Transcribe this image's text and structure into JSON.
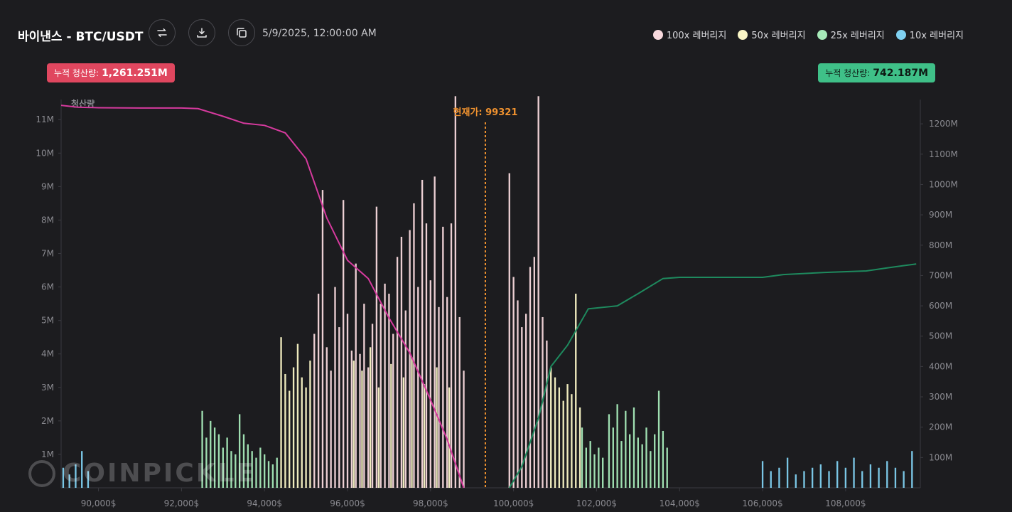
{
  "header": {
    "title": "바이낸스 - BTC/USDT",
    "datetime": "5/9/2025, 12:00:00 AM",
    "buttons": [
      {
        "name": "swap-button",
        "icon": "swap-icon"
      },
      {
        "name": "download-button",
        "icon": "download-icon"
      },
      {
        "name": "copy-button",
        "icon": "copy-icon"
      }
    ]
  },
  "legend": [
    {
      "label": "100x 레버리지",
      "color": "#f8d9dd"
    },
    {
      "label": "50x 레버리지",
      "color": "#faf6c6"
    },
    {
      "label": "25x 레버리지",
      "color": "#a7eab9"
    },
    {
      "label": "10x 레버리지",
      "color": "#7fd0f0"
    }
  ],
  "badges": {
    "left": {
      "label": "누적 청산량:",
      "value": "1,261.251M"
    },
    "right": {
      "label": "누적 청산량:",
      "value": "742.187M"
    }
  },
  "watermark": "COINPICKLE",
  "chart_data": {
    "type": "bar",
    "ylabel": "청산량",
    "current_price_label": "현재가: 99321",
    "current_price": 99321,
    "x_range": [
      89100,
      109800
    ],
    "x_ticks": [
      90000,
      92000,
      94000,
      96000,
      98000,
      100000,
      102000,
      104000,
      106000,
      108000
    ],
    "x_tick_labels": [
      "90,000$",
      "92,000$",
      "94,000$",
      "96,000$",
      "98,000$",
      "100,000$",
      "102,000$",
      "104,000$",
      "106,000$",
      "108,000$"
    ],
    "y_left_range": [
      0,
      11.6
    ],
    "y_left_ticks": [
      1,
      2,
      3,
      4,
      5,
      6,
      7,
      8,
      9,
      10,
      11
    ],
    "y_left_tick_labels": [
      "1M",
      "2M",
      "3M",
      "4M",
      "5M",
      "6M",
      "7M",
      "8M",
      "9M",
      "10M",
      "11M"
    ],
    "y_right_range": [
      0,
      1280
    ],
    "y_right_ticks": [
      100,
      200,
      300,
      400,
      500,
      600,
      700,
      800,
      900,
      1000,
      1100,
      1200
    ],
    "y_right_tick_labels": [
      "100M",
      "200M",
      "300M",
      "400M",
      "500M",
      "600M",
      "700M",
      "800M",
      "900M",
      "1000M",
      "1100M",
      "1200M"
    ],
    "bar_width_price": 40,
    "series": [
      {
        "name": "100x 레버리지",
        "color": "#f8d9dd",
        "bars": [
          [
            95200,
            4.6
          ],
          [
            95300,
            5.8
          ],
          [
            95400,
            8.9
          ],
          [
            95500,
            4.2
          ],
          [
            95600,
            3.5
          ],
          [
            95700,
            6.0
          ],
          [
            95800,
            4.8
          ],
          [
            95900,
            8.6
          ],
          [
            96000,
            5.2
          ],
          [
            96100,
            4.1
          ],
          [
            96200,
            6.7
          ],
          [
            96300,
            4.0
          ],
          [
            96400,
            5.5
          ],
          [
            96500,
            3.6
          ],
          [
            96600,
            4.9
          ],
          [
            96700,
            8.4
          ],
          [
            96800,
            5.5
          ],
          [
            96900,
            6.1
          ],
          [
            97000,
            5.8
          ],
          [
            97100,
            4.6
          ],
          [
            97200,
            6.9
          ],
          [
            97300,
            7.5
          ],
          [
            97400,
            5.3
          ],
          [
            97500,
            7.7
          ],
          [
            97600,
            8.5
          ],
          [
            97700,
            6.0
          ],
          [
            97800,
            9.2
          ],
          [
            97900,
            7.9
          ],
          [
            98000,
            6.2
          ],
          [
            98100,
            9.3
          ],
          [
            98200,
            5.4
          ],
          [
            98300,
            7.8
          ],
          [
            98400,
            5.7
          ],
          [
            98500,
            7.9
          ],
          [
            98600,
            11.7
          ],
          [
            98700,
            5.1
          ],
          [
            98800,
            3.5
          ],
          [
            99900,
            9.4
          ],
          [
            100000,
            6.3
          ],
          [
            100100,
            5.6
          ],
          [
            100200,
            4.8
          ],
          [
            100300,
            5.2
          ],
          [
            100400,
            6.6
          ],
          [
            100500,
            6.9
          ],
          [
            100600,
            11.7
          ],
          [
            100700,
            5.1
          ],
          [
            100800,
            4.4
          ]
        ]
      },
      {
        "name": "50x 레버리지",
        "color": "#faf6c6",
        "bars": [
          [
            94400,
            4.5
          ],
          [
            94500,
            3.4
          ],
          [
            94600,
            2.9
          ],
          [
            94700,
            3.6
          ],
          [
            94800,
            4.3
          ],
          [
            94900,
            3.3
          ],
          [
            95000,
            3.0
          ],
          [
            95100,
            3.8
          ],
          [
            96150,
            3.8
          ],
          [
            96350,
            3.5
          ],
          [
            96550,
            4.2
          ],
          [
            96750,
            3.0
          ],
          [
            97050,
            3.7
          ],
          [
            97350,
            3.3
          ],
          [
            97550,
            3.9
          ],
          [
            97850,
            3.1
          ],
          [
            98150,
            3.6
          ],
          [
            98450,
            3.0
          ],
          [
            100900,
            3.6
          ],
          [
            101000,
            3.3
          ],
          [
            101100,
            3.0
          ],
          [
            101200,
            2.6
          ],
          [
            101300,
            3.1
          ],
          [
            101400,
            2.8
          ],
          [
            101500,
            5.8
          ],
          [
            101600,
            2.4
          ]
        ]
      },
      {
        "name": "25x 레버리지",
        "color": "#a7eab9",
        "bars": [
          [
            92500,
            2.3
          ],
          [
            92600,
            1.5
          ],
          [
            92700,
            2.0
          ],
          [
            92800,
            1.8
          ],
          [
            92900,
            1.6
          ],
          [
            93000,
            1.2
          ],
          [
            93100,
            1.5
          ],
          [
            93200,
            1.1
          ],
          [
            93300,
            1.0
          ],
          [
            93400,
            2.2
          ],
          [
            93500,
            1.6
          ],
          [
            93600,
            1.3
          ],
          [
            93700,
            1.1
          ],
          [
            93800,
            0.9
          ],
          [
            93900,
            1.2
          ],
          [
            94000,
            1.0
          ],
          [
            94100,
            0.8
          ],
          [
            94200,
            0.7
          ],
          [
            94300,
            0.9
          ],
          [
            101650,
            1.8
          ],
          [
            101750,
            1.2
          ],
          [
            101850,
            1.4
          ],
          [
            101950,
            1.0
          ],
          [
            102050,
            1.2
          ],
          [
            102150,
            0.9
          ],
          [
            102300,
            2.2
          ],
          [
            102400,
            1.8
          ],
          [
            102500,
            2.5
          ],
          [
            102600,
            1.4
          ],
          [
            102700,
            2.3
          ],
          [
            102800,
            1.6
          ],
          [
            102900,
            2.4
          ],
          [
            103000,
            1.5
          ],
          [
            103100,
            1.3
          ],
          [
            103200,
            1.8
          ],
          [
            103300,
            1.1
          ],
          [
            103400,
            1.6
          ],
          [
            103500,
            2.9
          ],
          [
            103600,
            1.7
          ],
          [
            103700,
            1.2
          ]
        ]
      },
      {
        "name": "10x 레버리지",
        "color": "#7fd0f0",
        "bars": [
          [
            89150,
            0.6
          ],
          [
            89300,
            0.4
          ],
          [
            89450,
            0.7
          ],
          [
            89600,
            1.1
          ],
          [
            89750,
            0.5
          ],
          [
            106000,
            0.8
          ],
          [
            106200,
            0.5
          ],
          [
            106400,
            0.6
          ],
          [
            106600,
            0.9
          ],
          [
            106800,
            0.4
          ],
          [
            107000,
            0.5
          ],
          [
            107200,
            0.6
          ],
          [
            107400,
            0.7
          ],
          [
            107600,
            0.5
          ],
          [
            107800,
            0.8
          ],
          [
            108000,
            0.6
          ],
          [
            108200,
            0.9
          ],
          [
            108400,
            0.5
          ],
          [
            108600,
            0.7
          ],
          [
            108800,
            0.6
          ],
          [
            109000,
            0.8
          ],
          [
            109200,
            0.6
          ],
          [
            109400,
            0.5
          ],
          [
            109600,
            1.1
          ]
        ]
      }
    ],
    "cumulative_lines": [
      {
        "name": "left-cumulative",
        "color": "#d63a9e",
        "axis": "right",
        "points": [
          [
            89100,
            1261
          ],
          [
            89500,
            1255
          ],
          [
            90000,
            1253
          ],
          [
            91000,
            1252
          ],
          [
            92000,
            1252
          ],
          [
            92400,
            1250
          ],
          [
            93000,
            1225
          ],
          [
            93500,
            1202
          ],
          [
            94000,
            1195
          ],
          [
            94500,
            1170
          ],
          [
            95000,
            1085
          ],
          [
            95500,
            890
          ],
          [
            96000,
            750
          ],
          [
            96500,
            690
          ],
          [
            97000,
            560
          ],
          [
            97500,
            445
          ],
          [
            98000,
            290
          ],
          [
            98400,
            160
          ],
          [
            98800,
            0
          ]
        ]
      },
      {
        "name": "right-cumulative",
        "color": "#1e8a5e",
        "axis": "right",
        "points": [
          [
            99900,
            0
          ],
          [
            100200,
            70
          ],
          [
            100600,
            230
          ],
          [
            100900,
            400
          ],
          [
            101300,
            470
          ],
          [
            101800,
            590
          ],
          [
            102500,
            600
          ],
          [
            103000,
            640
          ],
          [
            103600,
            690
          ],
          [
            104000,
            694
          ],
          [
            104800,
            694
          ],
          [
            106000,
            694
          ],
          [
            106500,
            703
          ],
          [
            107500,
            710
          ],
          [
            108500,
            715
          ],
          [
            109000,
            725
          ],
          [
            109700,
            738
          ]
        ]
      }
    ]
  }
}
